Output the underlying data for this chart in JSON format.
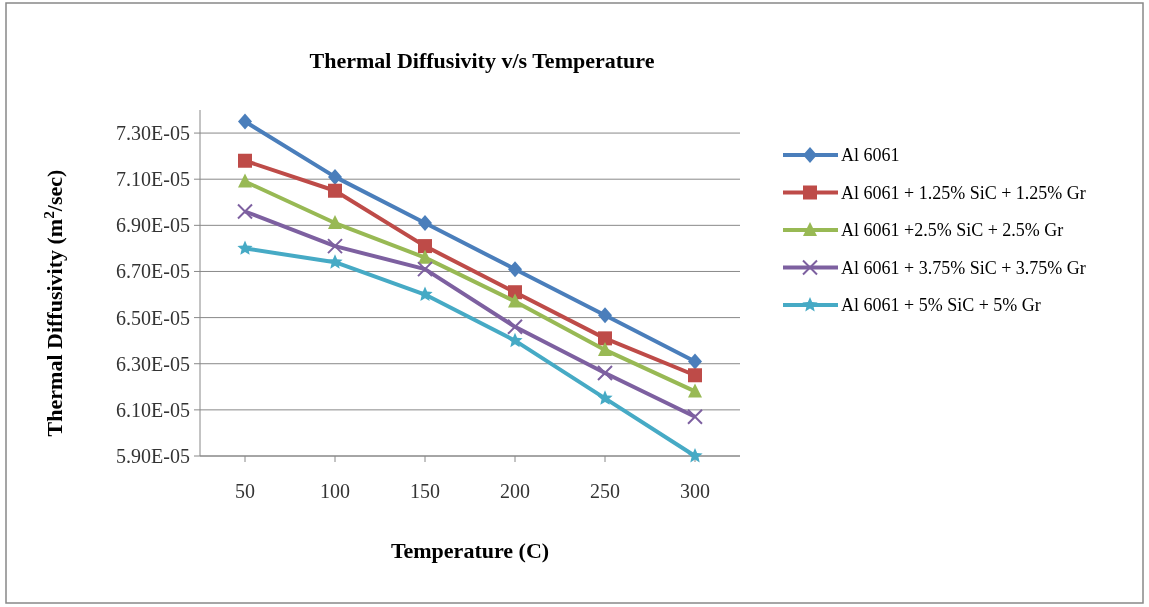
{
  "chart_data": {
    "type": "line",
    "title": "Thermal Diffusivity v/s Temperature",
    "xlabel": "Temperature (C)",
    "ylabel": "Thermal  Diffusivity  (m$^{2}$/sec)",
    "categories": [
      "50",
      "100",
      "150",
      "200",
      "250",
      "300"
    ],
    "series": [
      {
        "name": "Al 6061",
        "color": "#4a7ebb",
        "marker": "diamond",
        "values": [
          7.35e-05,
          7.11e-05,
          6.91e-05,
          6.71e-05,
          6.51e-05,
          6.31e-05
        ]
      },
      {
        "name": "Al 6061 + 1.25% SiC + 1.25% Gr",
        "color": "#be4b48",
        "marker": "square",
        "values": [
          7.18e-05,
          7.05e-05,
          6.81e-05,
          6.61e-05,
          6.41e-05,
          6.25e-05
        ]
      },
      {
        "name": "Al 6061 +2.5% SiC + 2.5% Gr",
        "color": "#98b954",
        "marker": "triangle",
        "values": [
          7.09e-05,
          6.91e-05,
          6.76e-05,
          6.57e-05,
          6.36e-05,
          6.18e-05
        ]
      },
      {
        "name": "Al 6061 + 3.75% SiC + 3.75% Gr",
        "color": "#7d60a0",
        "marker": "cross",
        "values": [
          6.96e-05,
          6.81e-05,
          6.71e-05,
          6.46e-05,
          6.26e-05,
          6.07e-05
        ]
      },
      {
        "name": "Al 6061 + 5% SiC + 5% Gr",
        "color": "#46aac5",
        "marker": "star",
        "values": [
          6.8e-05,
          6.74e-05,
          6.6e-05,
          6.4e-05,
          6.15e-05,
          5.9e-05
        ]
      }
    ],
    "ylim": [
      5.9e-05,
      7.4e-05
    ],
    "yticks": [
      {
        "value": 5.9e-05,
        "label": "5.90E-05"
      },
      {
        "value": 6.1e-05,
        "label": "6.10E-05"
      },
      {
        "value": 6.3e-05,
        "label": "6.30E-05"
      },
      {
        "value": 6.5e-05,
        "label": "6.50E-05"
      },
      {
        "value": 6.7e-05,
        "label": "6.70E-05"
      },
      {
        "value": 6.9e-05,
        "label": "6.90E-05"
      },
      {
        "value": 7.1e-05,
        "label": "7.10E-05"
      },
      {
        "value": 7.3e-05,
        "label": "7.30E-05"
      }
    ],
    "grid": "y",
    "legend": "right",
    "line_style": "solid"
  }
}
